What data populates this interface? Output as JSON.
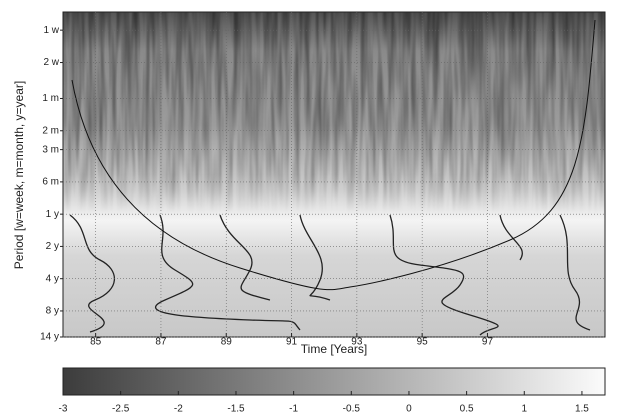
{
  "chart_data": {
    "type": "wavelet",
    "xlabel": "Time [Years]",
    "ylabel": "Period [w=week, m=month, y=year]",
    "xlim": [
      84,
      100.6
    ],
    "xticks": [
      85,
      87,
      89,
      91,
      93,
      95,
      97
    ],
    "ylim": [
      0.013,
      14
    ],
    "ylog": true,
    "yticks": [
      {
        "value": 0.0192,
        "label": "1 w"
      },
      {
        "value": 0.0385,
        "label": "2 w"
      },
      {
        "value": 0.0833,
        "label": "1 m"
      },
      {
        "value": 0.1667,
        "label": "2 m"
      },
      {
        "value": 0.25,
        "label": "3 m"
      },
      {
        "value": 0.5,
        "label": "6 m"
      },
      {
        "value": 1,
        "label": "1 y"
      },
      {
        "value": 2,
        "label": "2 y"
      },
      {
        "value": 4,
        "label": "4 y"
      },
      {
        "value": 8,
        "label": "8 y"
      },
      {
        "value": 14,
        "label": "14 y"
      }
    ],
    "grid": true,
    "colorbar": {
      "lim": [
        -3,
        1.7
      ],
      "ticks": [
        -3,
        -2.5,
        -2,
        -1.5,
        -1,
        -0.5,
        0,
        0.5,
        1,
        1.5
      ],
      "colors": [
        "#3c3c3c",
        "#fbfbfb"
      ]
    }
  }
}
